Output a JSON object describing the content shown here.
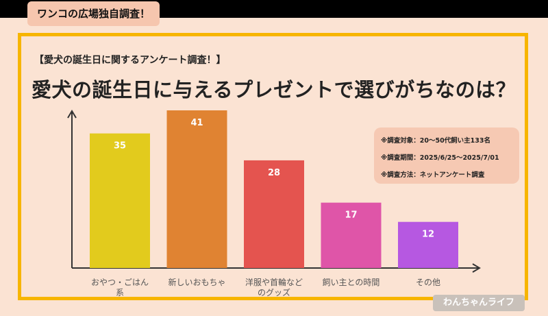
{
  "header": {
    "tag": "ワンコの広場独自調査！"
  },
  "notes": [
    "※調査対象：20〜50代飼い主133名",
    "※調査期間：2025/6/25〜2025/7/01",
    "※調査方法：ネットアンケート調査"
  ],
  "watermark": "わんちゃんライフ",
  "colors": {
    "background": "#fbe3d3",
    "frame": "#f7b500",
    "note_box": "#f6c9b3",
    "tag": "#f6c6ae",
    "bars": [
      "#e2cb1d",
      "#e08332",
      "#e4544f",
      "#df55a8",
      "#b658e1"
    ]
  },
  "chart_data": {
    "type": "bar",
    "title": "愛犬の誕生日に与えるプレゼントで選びがちなのは？",
    "subtitle": "【愛犬の誕生日に関するアンケート調査！】",
    "categories": [
      "おやつ・ごはん系",
      "新しいおもちゃ",
      "洋服や首輪などのグッズ",
      "飼い主との時間",
      "その他"
    ],
    "category_lines": [
      [
        "おやつ・ごはん",
        "系"
      ],
      [
        "新しいおもちゃ"
      ],
      [
        "洋服や首輪など",
        "のグッズ"
      ],
      [
        "飼い主との時間"
      ],
      [
        "その他"
      ]
    ],
    "values": [
      35,
      41,
      28,
      17,
      12
    ],
    "data_labels": [
      "35",
      "41",
      "28",
      "17",
      "12"
    ],
    "xlabel": "",
    "ylabel": "",
    "ylim": [
      0,
      50
    ],
    "grid": false,
    "legend": "none"
  }
}
